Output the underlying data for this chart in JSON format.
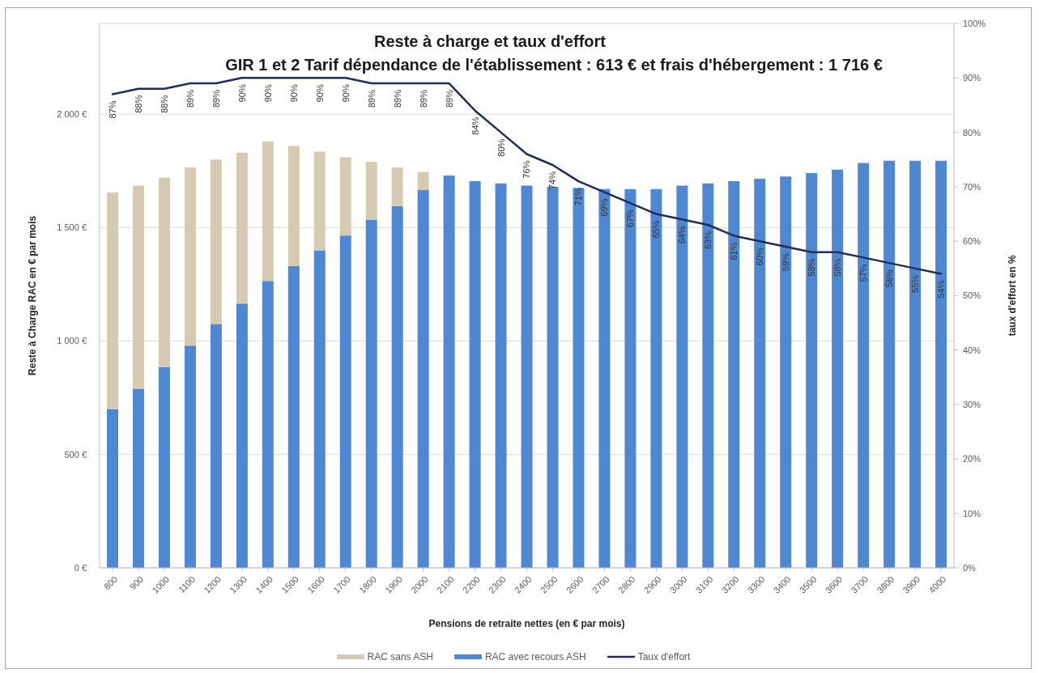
{
  "chart_data": {
    "type": "bar",
    "title": "Reste à charge et taux d'effort",
    "subtitle": "GIR 1 et 2 Tarif dépendance de l'établissement : 613 € et frais d'hébergement : 1 716 €",
    "xlabel": "Pensions de retraite nettes (en € par mois)",
    "ylabel": "Reste à Charge RAC en € par mois",
    "y2label": "taux d'effort en %",
    "categories": [
      "800",
      "900",
      "1000",
      "1100",
      "1200",
      "1300",
      "1400",
      "1500",
      "1600",
      "1700",
      "1800",
      "1900",
      "2000",
      "2100",
      "2200",
      "2300",
      "2400",
      "2500",
      "2600",
      "2700",
      "2800",
      "2900",
      "3000",
      "3100",
      "3200",
      "3300",
      "3400",
      "3500",
      "3600",
      "3700",
      "3800",
      "3900",
      "4000"
    ],
    "stacked": true,
    "series": [
      {
        "name": "RAC avec recours ASH",
        "color": "#4f87d2",
        "values": [
          700,
          790,
          885,
          980,
          1075,
          1165,
          1265,
          1330,
          1400,
          1465,
          1535,
          1595,
          1665,
          1730,
          1705,
          1695,
          1685,
          1680,
          1675,
          1670,
          1670,
          1670,
          1685,
          1695,
          1705,
          1715,
          1725,
          1740,
          1755,
          1785,
          1795,
          1795,
          1795
        ]
      },
      {
        "name": "RAC sans ASH",
        "color": "#d6cab2",
        "values": [
          955,
          895,
          835,
          785,
          725,
          665,
          615,
          530,
          435,
          345,
          255,
          170,
          80,
          null,
          null,
          null,
          null,
          null,
          null,
          null,
          null,
          null,
          null,
          null,
          null,
          null,
          null,
          null,
          null,
          null,
          null,
          null,
          null
        ]
      },
      {
        "name": "Taux d'effort",
        "type": "line",
        "axis": "y2",
        "color": "#1f2d5c",
        "values": [
          87,
          88,
          88,
          89,
          89,
          90,
          90,
          90,
          90,
          90,
          89,
          89,
          89,
          89,
          84,
          80,
          76,
          74,
          71,
          69,
          67,
          65,
          64,
          63,
          61,
          60,
          59,
          58,
          58,
          57,
          56,
          55,
          54
        ],
        "value_labels": [
          "87%",
          "88%",
          "88%",
          "89%",
          "89%",
          "90%",
          "90%",
          "90%",
          "90%",
          "90%",
          "89%",
          "89%",
          "89%",
          "89%",
          "84%",
          "80%",
          "76%",
          "74%",
          "71%",
          "69%",
          "67%",
          "65%",
          "64%",
          "63%",
          "61%",
          "60%",
          "59%",
          "58%",
          "58%",
          "57%",
          "56%",
          "55%",
          "54%"
        ]
      }
    ],
    "ylim": [
      0,
      2400
    ],
    "yticks": [
      {
        "value": 0,
        "label": "0 €"
      },
      {
        "value": 500,
        "label": "500 €"
      },
      {
        "value": 1000,
        "label": "1 000 €"
      },
      {
        "value": 1500,
        "label": "1 500 €"
      },
      {
        "value": 2000,
        "label": "2 000 €"
      }
    ],
    "y2lim": [
      0,
      100
    ],
    "y2ticks": [
      {
        "value": 0,
        "label": "0%"
      },
      {
        "value": 10,
        "label": "10%"
      },
      {
        "value": 20,
        "label": "20%"
      },
      {
        "value": 30,
        "label": "30%"
      },
      {
        "value": 40,
        "label": "40%"
      },
      {
        "value": 50,
        "label": "50%"
      },
      {
        "value": 60,
        "label": "60%"
      },
      {
        "value": 70,
        "label": "70%"
      },
      {
        "value": 80,
        "label": "80%"
      },
      {
        "value": 90,
        "label": "90%"
      },
      {
        "value": 100,
        "label": "100%"
      }
    ],
    "grid": "y",
    "legend": "bottom"
  }
}
